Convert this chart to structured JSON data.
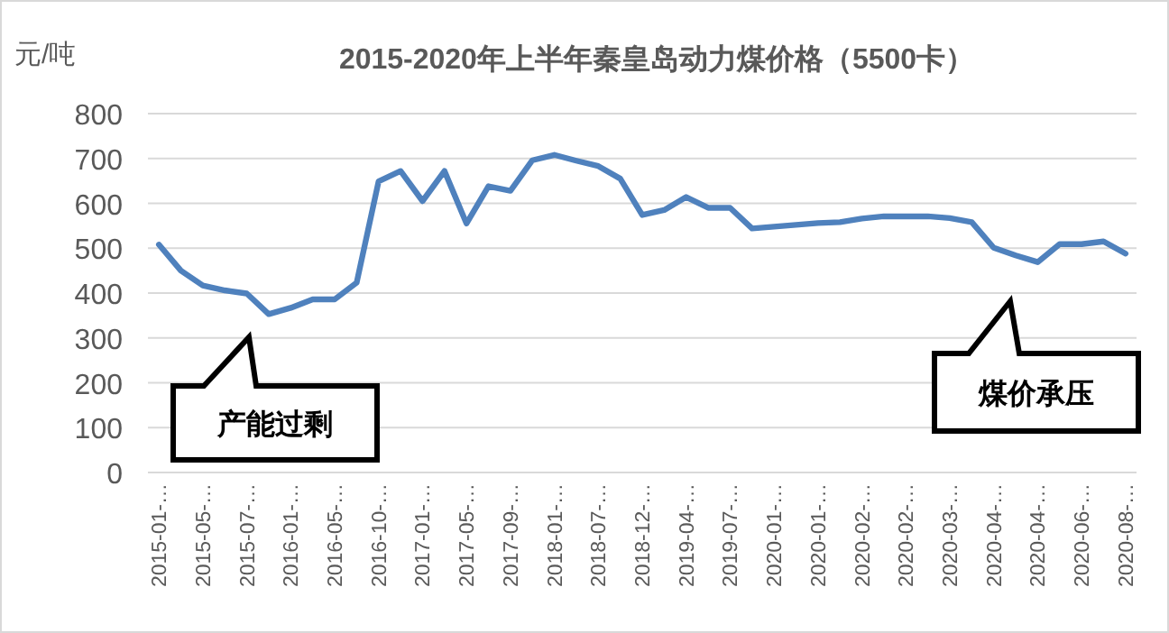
{
  "chart_data": {
    "type": "line",
    "title": "2015-2020年上半年秦皇岛动力煤价格（5500卡）",
    "ylabel": "元/吨",
    "categories": [
      "2015-01-…",
      null,
      "2015-05-…",
      null,
      "2015-07-…",
      null,
      "2016-01-…",
      null,
      "2016-05-…",
      null,
      "2016-10-…",
      null,
      "2017-01-…",
      null,
      "2017-05-…",
      null,
      "2017-09-…",
      null,
      "2018-01-…",
      null,
      "2018-07-…",
      null,
      "2018-12-…",
      null,
      "2019-04-…",
      null,
      "2019-07-…",
      null,
      "2020-01-…",
      null,
      "2020-01-…",
      null,
      "2020-02-…",
      null,
      "2020-02-…",
      null,
      "2020-03-…",
      null,
      "2020-04-…",
      null,
      "2020-04-…",
      null,
      "2020-06-…",
      null,
      "2020-08-…"
    ],
    "series": [
      {
        "color": "#4f81bd",
        "values": [
          508,
          450,
          417,
          406,
          399,
          353,
          367,
          386,
          386,
          423,
          649,
          672,
          605,
          672,
          555,
          638,
          628,
          696,
          708,
          695,
          683,
          655,
          574,
          585,
          614,
          590,
          590,
          544,
          548,
          552,
          556,
          558,
          566,
          571,
          571,
          571,
          567,
          558,
          501,
          484,
          469,
          509,
          509,
          515,
          488
        ]
      }
    ],
    "ylim": [
      0,
      800
    ],
    "yticks": [
      0,
      100,
      200,
      300,
      400,
      500,
      600,
      700,
      800
    ],
    "grid": "y",
    "marker": "none",
    "line_style": "solid",
    "annotations": [
      "产能过剩",
      "煤价承压"
    ]
  }
}
